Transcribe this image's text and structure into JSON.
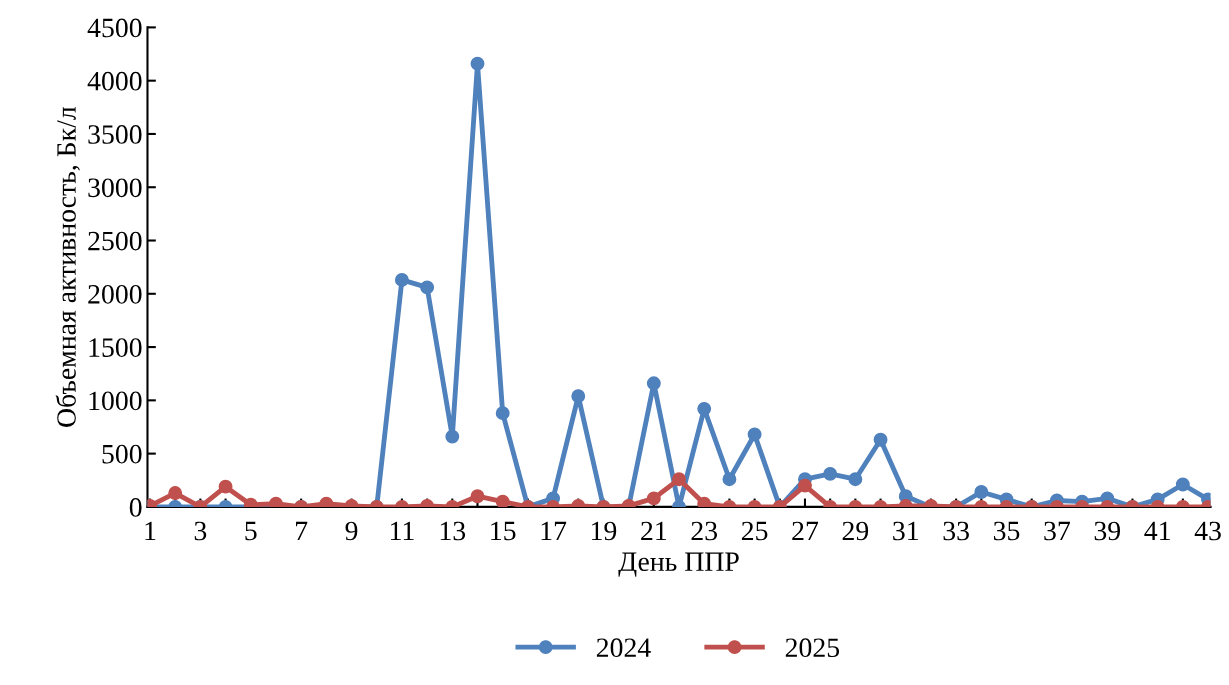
{
  "chart_data": {
    "type": "line",
    "xlabel": "День ППР",
    "ylabel": "Объемная активность, Бк/л",
    "categories": [
      "1",
      null,
      "3",
      null,
      "5",
      null,
      "7",
      null,
      "9",
      null,
      "11",
      null,
      "13",
      null,
      "15",
      null,
      "17",
      null,
      "19",
      null,
      "21",
      null,
      "23",
      null,
      "25",
      null,
      "27",
      null,
      "29",
      null,
      "31",
      null,
      "33",
      null,
      "35",
      null,
      "37",
      null,
      "39",
      null,
      "41",
      null,
      "43"
    ],
    "series": [
      {
        "name": "2024",
        "color": "#4f81bd",
        "values": [
          0,
          0,
          0,
          0,
          0,
          0,
          0,
          0,
          0,
          0,
          2130,
          2060,
          660,
          4160,
          880,
          0,
          80,
          1040,
          0,
          0,
          1160,
          0,
          920,
          260,
          680,
          0,
          260,
          310,
          260,
          630,
          100,
          0,
          0,
          140,
          70,
          0,
          60,
          50,
          80,
          0,
          70,
          210,
          70
        ]
      },
      {
        "name": "2025",
        "color": "#c0504d",
        "values": [
          10,
          130,
          0,
          190,
          20,
          30,
          0,
          30,
          10,
          0,
          0,
          10,
          0,
          100,
          50,
          0,
          0,
          10,
          0,
          10,
          80,
          260,
          30,
          0,
          0,
          0,
          200,
          0,
          0,
          0,
          10,
          10,
          0,
          0,
          0,
          0,
          0,
          0,
          0,
          0,
          0,
          0,
          0
        ]
      }
    ],
    "ylim": [
      0,
      4500
    ],
    "yticks": [
      0,
      500,
      1000,
      1500,
      2000,
      2500,
      3000,
      3500,
      4000,
      4500
    ],
    "grid": false,
    "legend": "bottom",
    "marker": "circle",
    "line_style": "solid"
  }
}
